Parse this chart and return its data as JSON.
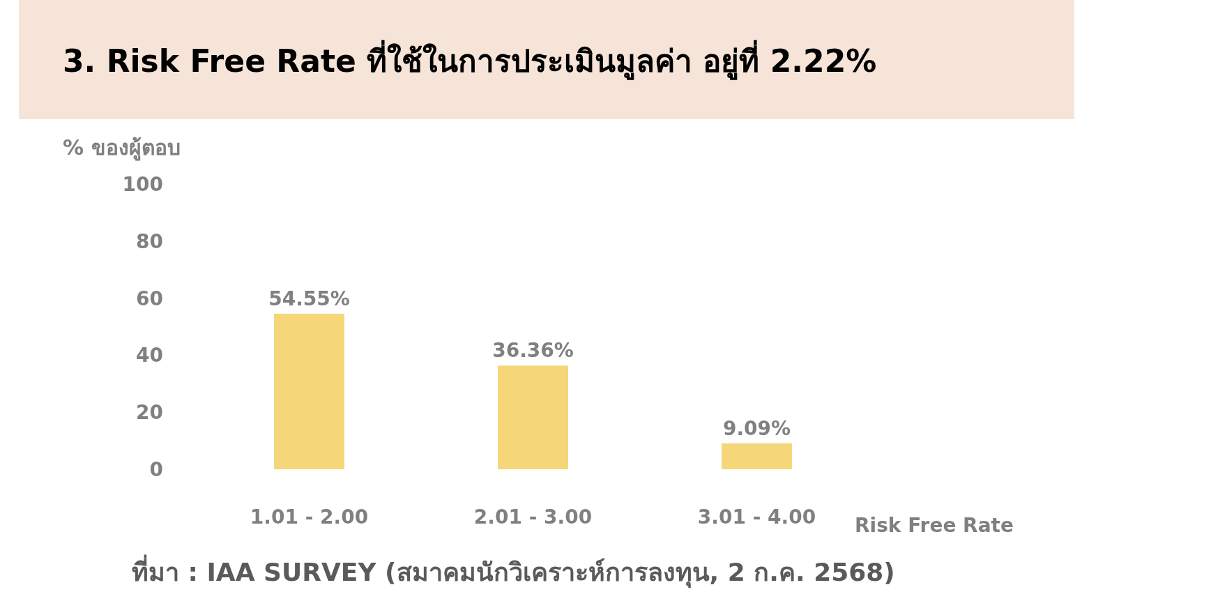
{
  "chart_data": {
    "type": "bar",
    "title": "3. Risk Free Rate ที่ใช้ในการประเมินมูลค่า อยู่ที่ 2.22%",
    "ylabel": "% ของผู้ตอบ",
    "xlabel": "Risk Free Rate",
    "categories": [
      "1.01 - 2.00",
      "2.01 - 3.00",
      "3.01 - 4.00"
    ],
    "values": [
      54.55,
      36.36,
      9.09
    ],
    "value_labels": [
      "54.55%",
      "36.36%",
      "9.09%"
    ],
    "color": "#f5d77a",
    "ylim": [
      0,
      100
    ],
    "yticks": [
      0,
      20,
      40,
      60,
      80,
      100
    ],
    "annotations": [
      "ที่มา : IAA SURVEY (สมาคมนักวิเคราะห์การลงทุน, 2 ก.ค. 2568)"
    ]
  }
}
